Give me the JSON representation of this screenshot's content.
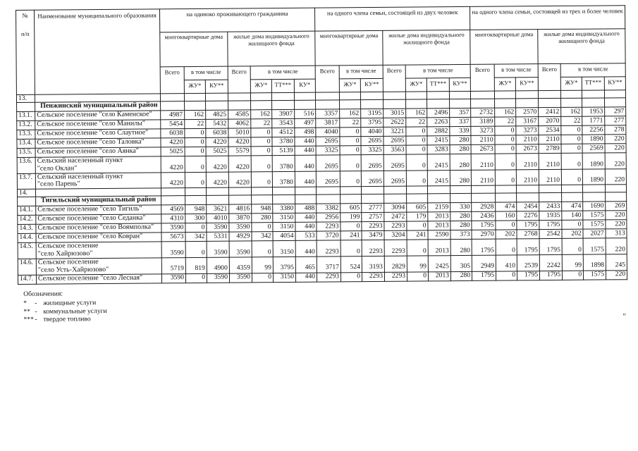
{
  "table": {
    "corner": {
      "num_top": "№",
      "num_bottom": "п/п",
      "name": "Наименование муниципального образования"
    },
    "labels": {
      "vsego": "Всего",
      "vtom": "в том числе"
    },
    "groups": [
      {
        "title": "на одиноко проживающего гражданина",
        "mkd": {
          "title": "многоквартирные дома",
          "cols": [
            "ЖУ*",
            "КУ**"
          ]
        },
        "zhd": {
          "title": "жилые дома индивидуального жилищного фонда",
          "cols": [
            "ЖУ*",
            "ТТ***",
            "КУ*"
          ]
        }
      },
      {
        "title": "на одного члена семьи, состоящей из двух человек",
        "mkd": {
          "title": "многоквартирные дома",
          "cols": [
            "ЖУ*",
            "КУ**"
          ]
        },
        "zhd": {
          "title": "жилые дома индивидуального жилищного фонда",
          "cols": [
            "ЖУ*",
            "ТТ***",
            "КУ**"
          ]
        }
      },
      {
        "title": "на одного члена семьи, состоящей из трех и более человек",
        "mkd": {
          "title": "многоквартирные дома",
          "cols": [
            "ЖУ*",
            "КУ**"
          ]
        },
        "zhd": {
          "title": "жилые дома индивидуального жилищного фонда",
          "cols": [
            "ЖУ*",
            "ТТ***",
            "КУ**"
          ]
        }
      }
    ],
    "rows": [
      {
        "type": "num",
        "num": "13."
      },
      {
        "type": "section",
        "name": "Пенжинский муниципальный район"
      },
      {
        "type": "data",
        "num": "13.1.",
        "name": "Сельское поселение \"село Каменское\"",
        "values": [
          4987,
          162,
          4825,
          4585,
          162,
          3907,
          516,
          3357,
          162,
          3195,
          3015,
          162,
          2496,
          357,
          2732,
          162,
          2570,
          2412,
          162,
          1953,
          297
        ]
      },
      {
        "type": "data",
        "num": "13.2.",
        "name": "Сельское поселение \"село Манилы\"",
        "values": [
          5454,
          22,
          5432,
          4062,
          22,
          3543,
          497,
          3817,
          22,
          3795,
          2622,
          22,
          2263,
          337,
          3189,
          22,
          3167,
          2070,
          22,
          1771,
          277
        ]
      },
      {
        "type": "data",
        "num": "13.3.",
        "name": "Сельское поселение \"село Слаутное\"",
        "values": [
          6038,
          0,
          6038,
          5010,
          0,
          4512,
          498,
          4040,
          0,
          4040,
          3221,
          0,
          2882,
          339,
          3273,
          0,
          3273,
          2534,
          0,
          2256,
          278
        ]
      },
      {
        "type": "data",
        "num": "13.4.",
        "name": "Сельское поселение \"село Таловка\"",
        "values": [
          4220,
          0,
          4220,
          4220,
          0,
          3780,
          440,
          2695,
          0,
          2695,
          2695,
          0,
          2415,
          280,
          2110,
          0,
          2110,
          2110,
          0,
          1890,
          220
        ]
      },
      {
        "type": "data",
        "num": "13.5.",
        "name": "Сельское поселение \"село Аянка\"",
        "values": [
          5025,
          0,
          5025,
          5579,
          0,
          5139,
          440,
          3325,
          0,
          3325,
          3563,
          0,
          3283,
          280,
          2673,
          0,
          2673,
          2789,
          0,
          2569,
          220
        ]
      },
      {
        "type": "data",
        "num": "13.6.",
        "name": "Сельский населенный пункт\n\"село Оклан\"",
        "values": [
          4220,
          0,
          4220,
          4220,
          0,
          3780,
          440,
          2695,
          0,
          2695,
          2695,
          0,
          2415,
          280,
          2110,
          0,
          2110,
          2110,
          0,
          1890,
          220
        ]
      },
      {
        "type": "data",
        "num": "13.7.",
        "name": "Сельский населенный пункт\n\"село Парень\"",
        "values": [
          4220,
          0,
          4220,
          4220,
          0,
          3780,
          440,
          2695,
          0,
          2695,
          2695,
          0,
          2415,
          280,
          2110,
          0,
          2110,
          2110,
          0,
          1890,
          220
        ]
      },
      {
        "type": "num",
        "num": "14."
      },
      {
        "type": "section",
        "name": "Тигильский муниципальный район"
      },
      {
        "type": "data",
        "num": "14.1.",
        "name": "Сельское поселение \"село Тигиль\"",
        "values": [
          4569,
          948,
          3621,
          4816,
          948,
          3380,
          488,
          3382,
          605,
          2777,
          3094,
          605,
          2159,
          330,
          2928,
          474,
          2454,
          2433,
          474,
          1690,
          269
        ]
      },
      {
        "type": "data",
        "num": "14.2.",
        "name": "Сельское поселение \"село Седанка\"",
        "values": [
          4310,
          300,
          4010,
          3870,
          280,
          3150,
          440,
          2956,
          199,
          2757,
          2472,
          179,
          2013,
          280,
          2436,
          160,
          2276,
          1935,
          140,
          1575,
          220
        ]
      },
      {
        "type": "data",
        "num": "14.3.",
        "name": "Сельское поселение \"село Воямполка\"",
        "values": [
          3590,
          0,
          3590,
          3590,
          0,
          3150,
          440,
          2293,
          0,
          2293,
          2293,
          0,
          2013,
          280,
          1795,
          0,
          1795,
          1795,
          0,
          1575,
          220
        ]
      },
      {
        "type": "data",
        "num": "14.4.",
        "name": "Сельское поселение \"село Ковран\"",
        "values": [
          5673,
          342,
          5331,
          4929,
          342,
          4054,
          533,
          3720,
          241,
          3479,
          3204,
          241,
          2590,
          373,
          2970,
          202,
          2768,
          2542,
          202,
          2027,
          313
        ]
      },
      {
        "type": "data",
        "num": "14.5.",
        "name": "Сельское поселение\n\"село Хайрюзово\"",
        "values": [
          3590,
          0,
          3590,
          3590,
          0,
          3150,
          440,
          2293,
          0,
          2293,
          2293,
          0,
          2013,
          280,
          1795,
          0,
          1795,
          1795,
          0,
          1575,
          220
        ]
      },
      {
        "type": "data",
        "num": "14.6.",
        "name": "Сельское поселение\n\"село Усть-Хайрюзово\"",
        "values": [
          5719,
          819,
          4900,
          4359,
          99,
          3795,
          465,
          3717,
          524,
          3193,
          2829,
          99,
          2425,
          305,
          2949,
          410,
          2539,
          2242,
          99,
          1898,
          245
        ]
      },
      {
        "type": "data",
        "num": "14.7.",
        "name": "Сельское поселение \"село Лесная\"",
        "values": [
          3590,
          0,
          3590,
          3590,
          0,
          3150,
          440,
          2293,
          0,
          2293,
          2293,
          0,
          2013,
          280,
          1795,
          0,
          1795,
          1795,
          0,
          1575,
          220
        ]
      }
    ]
  },
  "legend": {
    "title": "Обозначения:",
    "dash": "-",
    "items": [
      {
        "sym": "*",
        "text": "жилищные услуги"
      },
      {
        "sym": "**",
        "text": "коммунальные услуги"
      },
      {
        "sym": "***",
        "text": "твердое топливо"
      }
    ]
  },
  "artifact": "\""
}
